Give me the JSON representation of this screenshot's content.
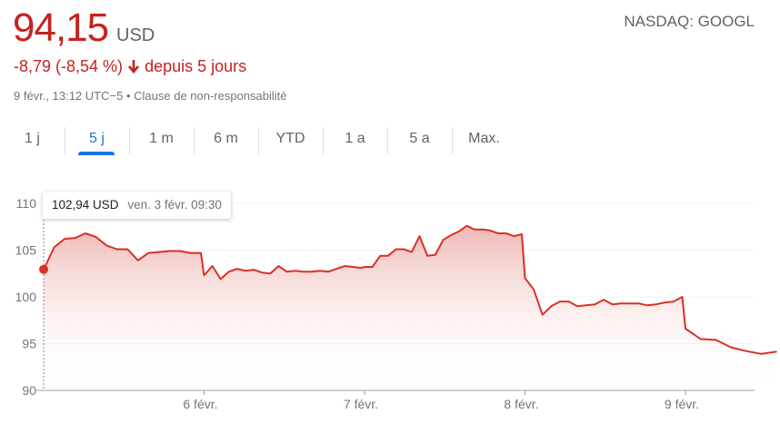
{
  "header": {
    "price": "94,15",
    "currency": "USD",
    "exchange_ticker": "NASDAQ: GOOGL",
    "change": "-8,79 (-8,54 %)",
    "change_period": "depuis 5 jours",
    "change_icon": "arrow-down-icon",
    "timestamp": "9 févr., 13:12 UTC−5",
    "separator": "•",
    "disclaimer": "Clause de non-responsabilité"
  },
  "tabs": [
    {
      "label": "1 j"
    },
    {
      "label": "5 j",
      "active": true
    },
    {
      "label": "1 m"
    },
    {
      "label": "6 m"
    },
    {
      "label": "YTD"
    },
    {
      "label": "1 a"
    },
    {
      "label": "5 a"
    },
    {
      "label": "Max."
    }
  ],
  "tooltip": {
    "price": "102,94 USD",
    "time": "ven. 3 févr. 09:30"
  },
  "colors": {
    "line": "#d93025",
    "negative": "#c5221f",
    "accent": "#1a73e8"
  },
  "chart_data": {
    "type": "area",
    "ylim": [
      90,
      110
    ],
    "y_ticks": [
      "90",
      "95",
      "100",
      "105",
      "110"
    ],
    "x_ticks": [
      "6 févr.",
      "7 févr.",
      "8 févr.",
      "9 févr."
    ],
    "grid": true,
    "previous_close_marker": 102.94,
    "sessions": [
      {
        "day": "3 févr.",
        "values": [
          102.9,
          105.3,
          106.2,
          106.3,
          106.8,
          106.4,
          105.5,
          105.1,
          105.1,
          103.9,
          104.7,
          104.8,
          104.9,
          104.9,
          104.7,
          104.7
        ]
      },
      {
        "day": "6 févr.",
        "values": [
          102.3,
          103.3,
          101.9,
          102.7,
          103.0,
          102.8,
          102.9,
          102.6,
          102.5,
          103.3,
          102.7,
          102.8,
          102.7,
          102.7,
          102.8,
          102.7,
          103.0,
          103.3,
          103.2,
          103.1
        ]
      },
      {
        "day": "7 févr.",
        "values": [
          103.2,
          103.2,
          104.4,
          104.4,
          105.1,
          105.1,
          104.8,
          106.5,
          104.4,
          104.5,
          106.1,
          106.6,
          107.0,
          107.6,
          107.2,
          107.2,
          107.1,
          106.8,
          106.8,
          106.5,
          106.7
        ]
      },
      {
        "day": "8 févr.",
        "values": [
          102.0,
          100.8,
          98.1,
          99.0,
          99.5,
          99.5,
          99.0,
          99.1,
          99.2,
          99.7,
          99.2,
          99.3,
          99.3,
          99.3,
          99.1,
          99.2,
          99.4,
          99.5,
          100.0
        ]
      },
      {
        "day": "9 févr.",
        "values": [
          96.6,
          95.5,
          95.4,
          94.6,
          94.2,
          93.9,
          94.15
        ],
        "ends": "13:12"
      }
    ]
  }
}
